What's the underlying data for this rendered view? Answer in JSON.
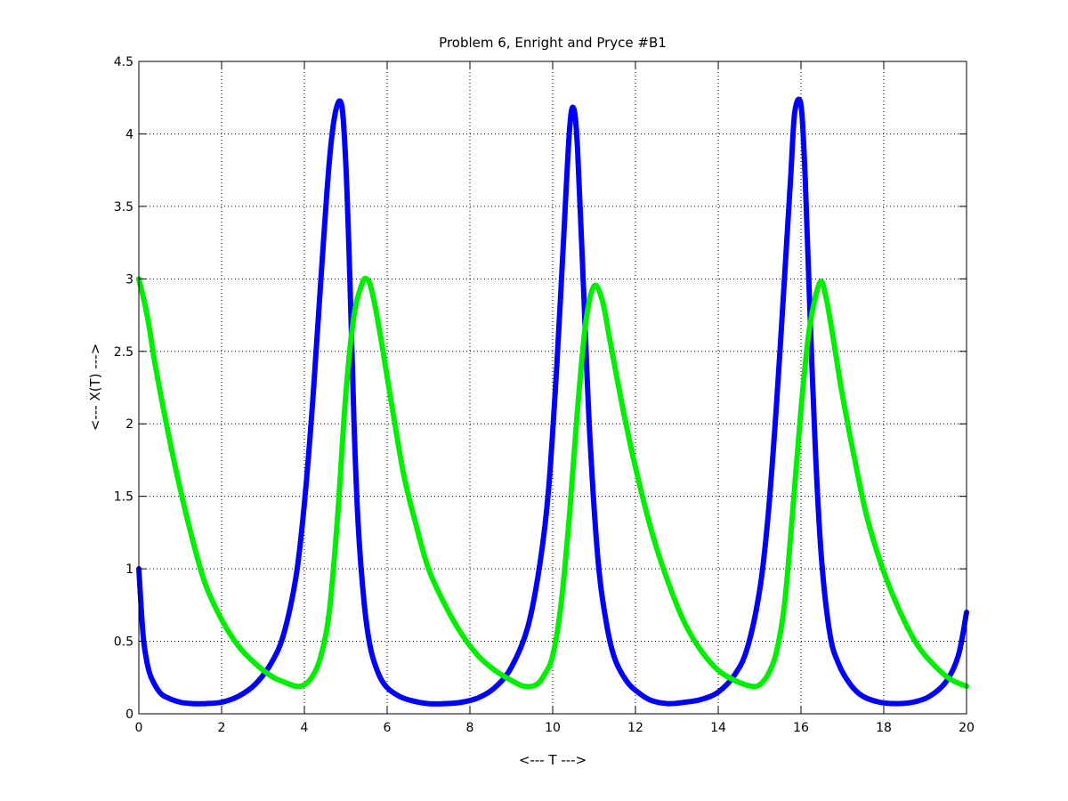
{
  "chart_data": {
    "type": "line",
    "title": "Problem 6, Enright and Pryce #B1",
    "xlabel": "<--- T --->",
    "ylabel": "<--- X(T) --->",
    "xlim": [
      0,
      20
    ],
    "ylim": [
      0,
      4.5
    ],
    "xticks": [
      0,
      2,
      4,
      6,
      8,
      10,
      12,
      14,
      16,
      18,
      20
    ],
    "yticks": [
      0,
      0.5,
      1,
      1.5,
      2,
      2.5,
      3,
      3.5,
      4,
      4.5
    ],
    "xtick_labels": [
      "0",
      "2",
      "4",
      "6",
      "8",
      "10",
      "12",
      "14",
      "16",
      "18",
      "20"
    ],
    "ytick_labels": [
      "0",
      "0.5",
      "1",
      "1.5",
      "2",
      "2.5",
      "3",
      "3.5",
      "4",
      "4.5"
    ],
    "grid": true,
    "legend": "none",
    "series": [
      {
        "color": "#0000ff",
        "x": [
          0,
          0.1,
          0.2,
          0.3,
          0.5,
          0.7,
          1.0,
          1.3,
          1.6,
          2.0,
          2.4,
          2.8,
          3.2,
          3.5,
          3.8,
          4.0,
          4.2,
          4.4,
          4.6,
          4.75,
          4.9,
          5.0,
          5.1,
          5.2,
          5.3,
          5.45,
          5.6,
          5.8,
          6.0,
          6.3,
          6.6,
          7.0,
          7.4,
          7.8,
          8.2,
          8.6,
          9.0,
          9.4,
          9.7,
          9.9,
          10.1,
          10.25,
          10.4,
          10.5,
          10.6,
          10.75,
          10.9,
          11.1,
          11.3,
          11.5,
          11.8,
          12.1,
          12.4,
          12.8,
          13.2,
          13.6,
          14.0,
          14.4,
          14.7,
          15.0,
          15.2,
          15.4,
          15.6,
          15.75,
          15.85,
          16.0,
          16.1,
          16.2,
          16.35,
          16.5,
          16.7,
          16.9,
          17.2,
          17.5,
          17.9,
          18.3,
          18.7,
          19.1,
          19.5,
          19.8,
          20.0
        ],
        "y": [
          1.0,
          0.55,
          0.35,
          0.25,
          0.15,
          0.11,
          0.08,
          0.07,
          0.07,
          0.08,
          0.12,
          0.2,
          0.35,
          0.55,
          0.95,
          1.45,
          2.15,
          3.0,
          3.8,
          4.15,
          4.2,
          3.8,
          3.0,
          2.0,
          1.3,
          0.75,
          0.45,
          0.27,
          0.18,
          0.12,
          0.09,
          0.07,
          0.07,
          0.08,
          0.11,
          0.18,
          0.32,
          0.6,
          1.05,
          1.55,
          2.4,
          3.2,
          4.0,
          4.18,
          3.9,
          2.9,
          1.9,
          1.05,
          0.62,
          0.38,
          0.22,
          0.14,
          0.09,
          0.07,
          0.08,
          0.1,
          0.15,
          0.27,
          0.45,
          0.85,
          1.35,
          2.1,
          3.0,
          3.7,
          4.15,
          4.2,
          3.7,
          2.9,
          1.8,
          1.05,
          0.55,
          0.35,
          0.2,
          0.12,
          0.08,
          0.07,
          0.08,
          0.12,
          0.22,
          0.4,
          0.7
        ]
      },
      {
        "color": "#00ee00",
        "x": [
          0,
          0.2,
          0.4,
          0.7,
          1.0,
          1.3,
          1.6,
          2.0,
          2.4,
          2.8,
          3.2,
          3.5,
          3.8,
          4.0,
          4.2,
          4.4,
          4.6,
          4.8,
          5.0,
          5.2,
          5.4,
          5.5,
          5.6,
          5.75,
          5.9,
          6.1,
          6.4,
          6.7,
          7.0,
          7.4,
          7.8,
          8.2,
          8.6,
          9.0,
          9.3,
          9.6,
          9.8,
          10.0,
          10.2,
          10.4,
          10.6,
          10.8,
          11.0,
          11.2,
          11.4,
          11.7,
          12.0,
          12.4,
          12.8,
          13.2,
          13.6,
          14.0,
          14.4,
          14.8,
          15.0,
          15.2,
          15.4,
          15.6,
          15.8,
          16.0,
          16.2,
          16.45,
          16.6,
          16.8,
          17.0,
          17.3,
          17.6,
          18.0,
          18.4,
          18.8,
          19.2,
          19.6,
          20.0
        ],
        "y": [
          3.0,
          2.75,
          2.4,
          1.95,
          1.55,
          1.2,
          0.9,
          0.65,
          0.47,
          0.35,
          0.26,
          0.22,
          0.19,
          0.2,
          0.26,
          0.4,
          0.7,
          1.35,
          2.2,
          2.75,
          2.97,
          3.0,
          2.95,
          2.75,
          2.5,
          2.15,
          1.65,
          1.3,
          1.0,
          0.75,
          0.55,
          0.4,
          0.3,
          0.23,
          0.19,
          0.2,
          0.27,
          0.4,
          0.75,
          1.35,
          2.1,
          2.7,
          2.95,
          2.85,
          2.55,
          2.1,
          1.7,
          1.25,
          0.9,
          0.62,
          0.43,
          0.3,
          0.23,
          0.19,
          0.2,
          0.27,
          0.42,
          0.75,
          1.4,
          2.1,
          2.65,
          2.97,
          2.88,
          2.55,
          2.2,
          1.75,
          1.35,
          0.98,
          0.7,
          0.48,
          0.34,
          0.24,
          0.19
        ]
      }
    ]
  }
}
